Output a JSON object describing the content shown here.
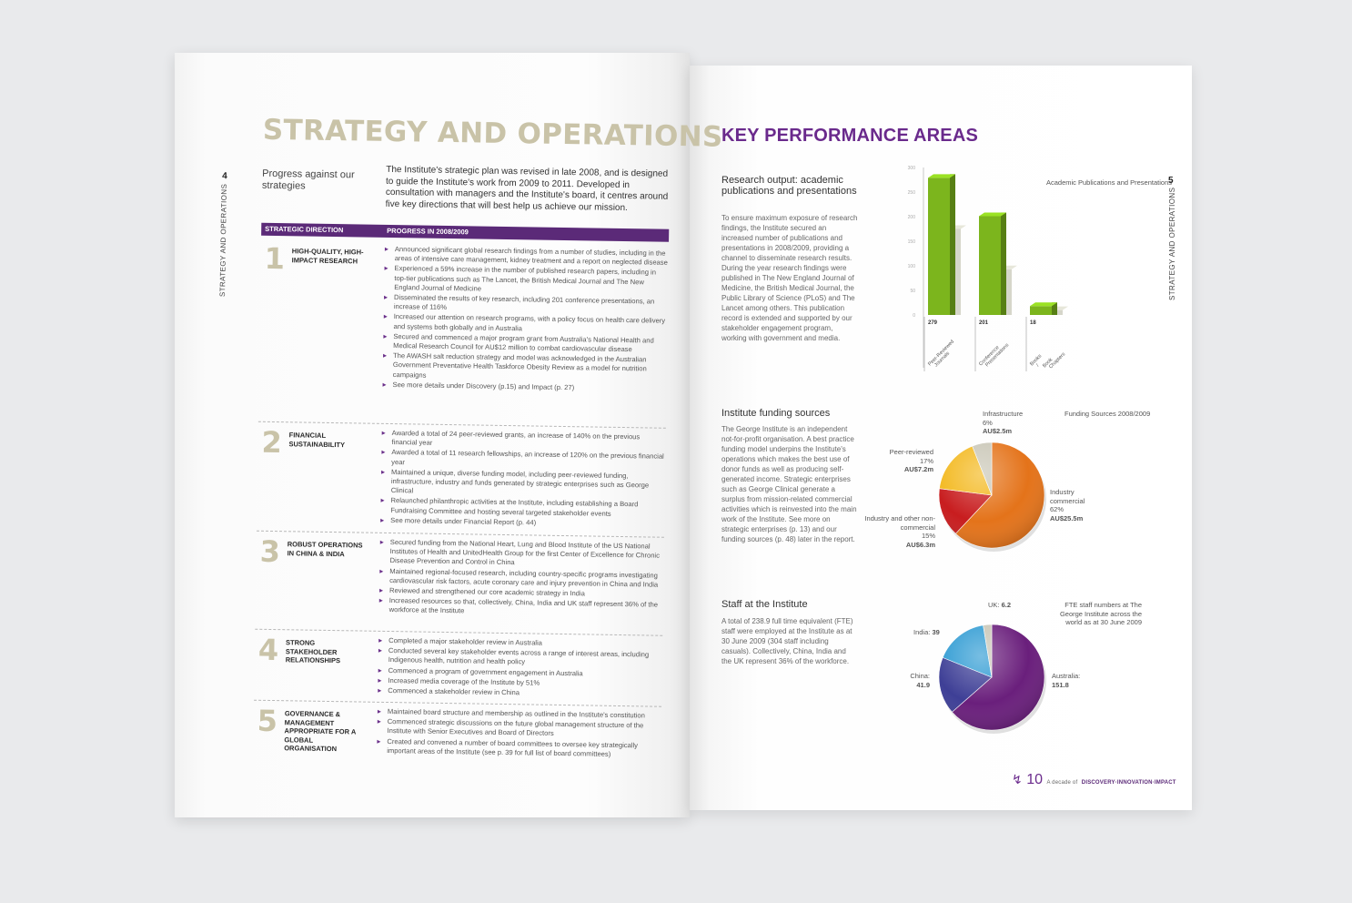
{
  "left_page": {
    "side_label": "STRATEGY AND OPERATIONS",
    "page_number": "4",
    "title": "STRATEGY AND OPERATIONS",
    "progress_label": "Progress against our strategies",
    "intro": "The Institute's strategic plan was revised in late 2008, and is designed to guide the Institute's work from 2009 to 2011. Developed in consultation with managers and the Institute's board, it centres around five key directions that will best help us achieve our mission.",
    "table": {
      "col1": "STRATEGIC DIRECTION",
      "col2": "PROGRESS IN 2008/2009",
      "rows": [
        {
          "num": "1",
          "direction": "HIGH-QUALITY, HIGH-IMPACT RESEARCH",
          "items": [
            "Announced significant global research findings from a number of studies, including in the areas of intensive care management, kidney treatment and a report on neglected disease",
            "Experienced a 59% increase in the number of published research papers, including in top-tier publications such as The Lancet, the British Medical Journal and The New England Journal of Medicine",
            "Disseminated the results of key research, including 201 conference presentations, an increase of 116%",
            "Increased our attention on research programs, with a policy focus on health care delivery and systems both globally and in Australia",
            "Secured and commenced a major program grant from Australia's National Health and Medical Research Council for AU$12 million to combat cardiovascular disease",
            "The AWASH salt reduction strategy and model was acknowledged in the Australian Government Preventative Health Taskforce Obesity Review as a model for nutrition campaigns",
            "See more details under Discovery (p.15) and Impact (p. 27)"
          ]
        },
        {
          "num": "2",
          "direction": "FINANCIAL SUSTAINABILITY",
          "items": [
            "Awarded a total of 24 peer-reviewed grants, an increase of 140% on the previous financial year",
            "Awarded a total of 11 research fellowships, an increase of 120% on the previous financial year",
            "Maintained a unique, diverse funding model, including peer-reviewed funding, infrastructure, industry and funds generated by strategic enterprises such as George Clinical",
            "Relaunched philanthropic activities at the Institute, including establishing a Board Fundraising Committee and hosting several targeted stakeholder events",
            "See more details under Financial Report (p. 44)"
          ]
        },
        {
          "num": "3",
          "direction": "ROBUST OPERATIONS IN CHINA & INDIA",
          "items": [
            "Secured funding from the National Heart, Lung and Blood Institute of the US National Institutes of Health and UnitedHealth Group for the first Center of Excellence for Chronic Disease Prevention and Control in China",
            "Maintained regional-focused research, including country-specific programs investigating cardiovascular risk factors, acute coronary care and injury prevention in China and India",
            "Reviewed and strengthened our core academic strategy in India",
            "Increased resources so that, collectively, China, India and UK staff represent 36% of the workforce at the Institute"
          ]
        },
        {
          "num": "4",
          "direction": "STRONG STAKEHOLDER RELATIONSHIPS",
          "items": [
            "Completed a major stakeholder review in Australia",
            "Conducted several key stakeholder events across a range of interest areas, including Indigenous health, nutrition and health policy",
            "Commenced a program of government engagement in Australia",
            "Increased media coverage of the Institute by 51%",
            "Commenced a stakeholder review in China"
          ]
        },
        {
          "num": "5",
          "direction": "GOVERNANCE & MANAGEMENT APPROPRIATE FOR A GLOBAL ORGANISATION",
          "items": [
            "Maintained board structure and membership as outlined in the Institute's constitution",
            "Commenced strategic discussions on the future global management structure of the Institute with Senior Executives and Board of Directors",
            "Created and convened a number of board committees to oversee key strategically important areas of the Institute (see p. 39 for full list of board committees)"
          ]
        }
      ]
    }
  },
  "right_page": {
    "side_label": "STRATEGY AND OPERATIONS",
    "page_number": "5",
    "title": "KEY PERFORMANCE AREAS",
    "research": {
      "title": "Research output: academic publications and presentations",
      "body": "To ensure maximum exposure of research findings, the Institute secured an increased number of publications and presentations in 2008/2009, providing a channel to disseminate research results. During the year research findings were published in The New England Journal of Medicine, the British Medical Journal, the Public Library of Science (PLoS) and The Lancet among others. This publication record is extended and supported by our stakeholder engagement program, working with government and media.",
      "chart_caption": "Academic Publications and Presentations"
    },
    "funding": {
      "title": "Institute funding sources",
      "body": "The George Institute is an independent not-for-profit organisation. A best practice funding model underpins the Institute's operations which makes the best use of donor funds as well as producing self-generated income. Strategic enterprises such as George Clinical generate a surplus from mission-related commercial activities which is reinvested into the main work of the Institute. See more on strategic enterprises (p. 13) and our funding sources (p. 48) later in the report.",
      "chart_caption": "Funding Sources 2008/2009"
    },
    "staff": {
      "title": "Staff at the Institute",
      "body": "A total of 238.9 full time equivalent (FTE) staff were employed at the Institute as at 30 June 2009 (304 staff including casuals). Collectively, China, India and the UK represent 36% of the workforce.",
      "chart_caption": "FTE staff numbers at The George Institute across the world as at 30 June 2009"
    },
    "footer": {
      "page": "10",
      "tagline_prefix": "A decade of",
      "tagline": "DISCOVERY·INNOVATION·IMPACT"
    }
  },
  "chart_data": [
    {
      "type": "bar",
      "title": "Academic Publications and Presentations",
      "categories": [
        "Peer-Reviewed Journals",
        "Conference Presentations",
        "Books / Book Chapters"
      ],
      "series": [
        {
          "name": "",
          "values": [
            279,
            201,
            18
          ],
          "color": "#7cb51d"
        },
        {
          "name": "",
          "values": [
            175,
            93,
            10
          ],
          "color": "#d6d6ca"
        }
      ],
      "data_labels": [
        "279",
        "201",
        "18"
      ],
      "yticks": [
        "300",
        "250",
        "200",
        "150",
        "100",
        "50",
        "0"
      ],
      "ylim": [
        0,
        300
      ]
    },
    {
      "type": "pie",
      "title": "Funding Sources 2008/2009",
      "slices": [
        {
          "label": "Industry commercial",
          "percent": "62%",
          "amount": "AU$25.5m",
          "value": 62,
          "color": "#e4731a"
        },
        {
          "label": "Industry and other non-commercial",
          "percent": "15%",
          "amount": "AU$6.3m",
          "value": 15,
          "color": "#c81d1f"
        },
        {
          "label": "Peer-reviewed",
          "percent": "17%",
          "amount": "AU$7.2m",
          "value": 17,
          "color": "#f3b81d"
        },
        {
          "label": "Infrastructure",
          "percent": "6%",
          "amount": "AU$2.5m",
          "value": 6,
          "color": "#c9c6b6"
        }
      ]
    },
    {
      "type": "pie",
      "title": "FTE staff numbers at The George Institute across the world as at 30 June 2009",
      "slices": [
        {
          "label": "Australia:",
          "amount": "151.8",
          "value": 151.8,
          "color": "#6a1f7c"
        },
        {
          "label": "China:",
          "amount": "41.9",
          "value": 41.9,
          "color": "#3e3f96"
        },
        {
          "label": "India:",
          "amount": "39",
          "value": 39,
          "color": "#2f9bd3"
        },
        {
          "label": "UK:",
          "amount": "6.2",
          "value": 6.2,
          "color": "#c9c6b6"
        }
      ]
    }
  ]
}
